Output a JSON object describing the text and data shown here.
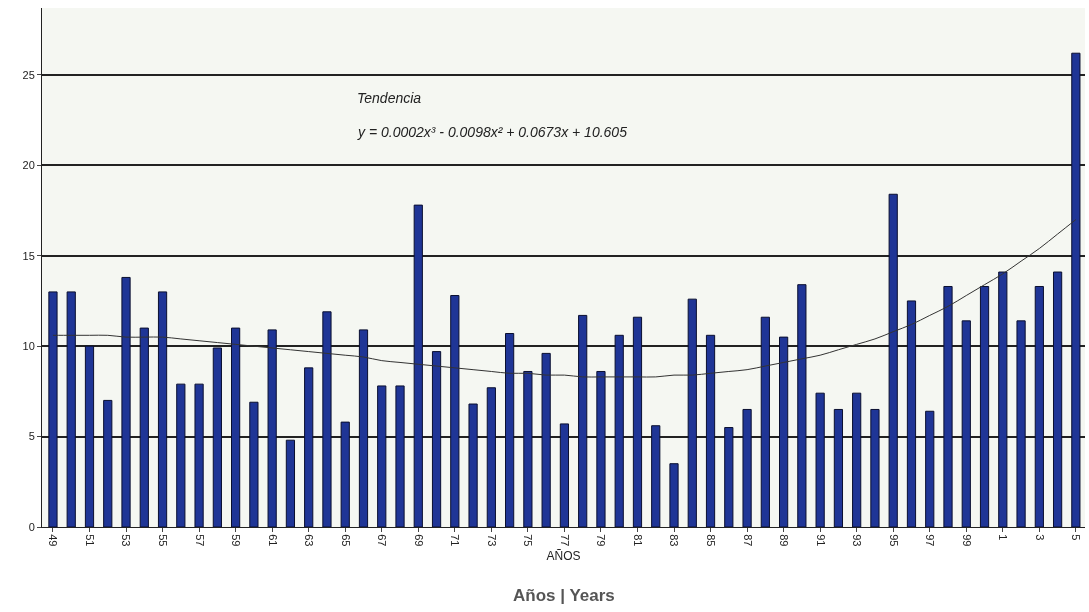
{
  "chart_data": {
    "type": "bar",
    "xlabel": "AÑOS",
    "categories": [
      "49",
      null,
      "51",
      null,
      "53",
      null,
      "55",
      null,
      "57",
      null,
      "59",
      null,
      "61",
      null,
      "63",
      null,
      "65",
      null,
      "67",
      null,
      "69",
      null,
      "71",
      null,
      "73",
      null,
      "75",
      null,
      "77",
      null,
      "79",
      null,
      "81",
      null,
      "83",
      null,
      "85",
      null,
      "87",
      null,
      "89",
      null,
      "91",
      null,
      "93",
      null,
      "95",
      null,
      "97",
      null,
      "99",
      null,
      "1",
      null,
      "3",
      null,
      "5"
    ],
    "series": [
      {
        "color": "#1f3596",
        "values": [
          13.0,
          13.0,
          10.0,
          7.0,
          13.8,
          11.0,
          13.0,
          7.9,
          7.9,
          9.9,
          11.0,
          6.9,
          10.9,
          4.8,
          8.8,
          11.9,
          5.8,
          10.9,
          7.8,
          7.8,
          17.8,
          9.7,
          12.8,
          6.8,
          7.7,
          10.7,
          8.6,
          9.6,
          5.7,
          11.7,
          8.6,
          10.6,
          11.6,
          5.6,
          3.5,
          12.6,
          10.6,
          5.5,
          6.5,
          11.6,
          10.5,
          13.4,
          7.4,
          6.5,
          7.4,
          6.5,
          18.4,
          12.5,
          6.4,
          13.3,
          11.4,
          13.3,
          14.1,
          11.4,
          13.3,
          14.1,
          26.2
        ]
      },
      {
        "type": "line",
        "color": "#333333",
        "values": [
          10.6,
          10.6,
          10.6,
          10.6,
          10.5,
          10.5,
          10.5,
          10.4,
          10.3,
          10.2,
          10.1,
          10.0,
          9.9,
          9.8,
          9.7,
          9.6,
          9.5,
          9.4,
          9.2,
          9.1,
          9.0,
          8.9,
          8.8,
          8.7,
          8.6,
          8.5,
          8.5,
          8.4,
          8.4,
          8.3,
          8.3,
          8.3,
          8.3,
          8.3,
          8.4,
          8.4,
          8.5,
          8.6,
          8.7,
          8.9,
          9.1,
          9.3,
          9.5,
          9.8,
          10.1,
          10.4,
          10.8,
          11.2,
          11.7,
          12.2,
          12.8,
          13.4,
          14.0,
          14.7,
          15.4,
          16.2,
          17.0
        ]
      }
    ],
    "ylim": [
      0,
      28.7
    ],
    "yticks": [
      0,
      5,
      10,
      15,
      20,
      25
    ],
    "grid": "y",
    "legend": false,
    "annotations": [
      "Tendencia",
      "y = 0.0002x³ - 0.0098x² + 0.0673x + 10.605",
      "Años | Years"
    ]
  }
}
